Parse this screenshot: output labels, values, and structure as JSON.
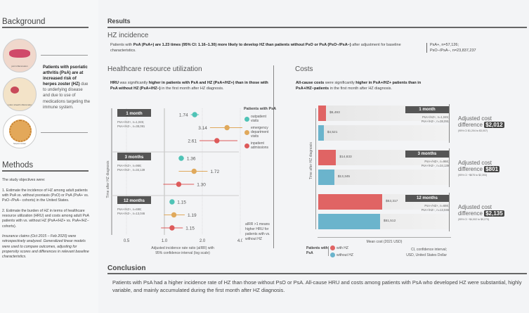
{
  "background": {
    "title": "Background",
    "bold": "Patients with psoriatic arthritis (PsA) are at increased risk of herpes zoster (HZ)",
    "text": " due to underlying disease and due to use of medications targeting the immune system.",
    "img_labels": [
      "joint inflammation",
      "tendon sheath inflammation",
      "herpes zoster"
    ]
  },
  "methods": {
    "title": "Methods",
    "intro": "The study objectives were:",
    "obj1": "1. Estimate the incidence of HZ among adult patients with PsA vs. without psoriasis (PsO) or PsA (PsA+ vs. PsO−/PsA− cohorts) in the United States.",
    "obj2": "2. Estimate the burden of HZ in terms of healthcare resource utilization (HRU) and costs among adult PsA patients with vs. without HZ (PsA+/HZ+ vs. PsA+/HZ− cohorts).",
    "note": "Insurance claims (Oct 2015 – Feb 2020) were retrospectively analyzed. Generalized linear models were used to compare outcomes, adjusting for propensity scores and differences in relevant baseline characteristics."
  },
  "results": {
    "title": "Results",
    "incidence_title": "HZ incidence",
    "inc_a": "Patients with ",
    "inc_b": "PsA (PsA+) are 1.23 times (95% CI: 1.16–1.30) more likely to develop HZ than patients without PsO or PsA (PsO−/PsA−)",
    "inc_c": " after adjustment for baseline characteristics.",
    "n1": "PsA+, n=57,126;",
    "n2": "PsO−/PsA−, n=23,837,237"
  },
  "hru": {
    "title": "Healthcare resource utilization",
    "t1": "HRU",
    "t2": " was significantly ",
    "t3": "higher in patients with PsA and HZ (PsA+/HZ+) than in those with PsA without HZ (PsA+/HZ−)",
    "t4": " in the first month after HZ diagnosis.",
    "ylabel": "Time after HZ diagnosis",
    "xlabel": "Adjusted incidence rate ratio (aIRR) with 95% confidence interval (log scale)",
    "legend_title": "Patients with PsA",
    "note": "aIRR >1 means higher HRU for patients with vs. without HZ"
  },
  "colors": {
    "outpatient": "#4fc3b6",
    "ed": "#e0a95c",
    "inpatient": "#dd5a5a",
    "with_hz": "#e06464",
    "without_hz": "#6bb4cc"
  },
  "chart_data": [
    {
      "type": "forest",
      "xscale": "log",
      "xticks": [
        0.5,
        1.0,
        2.0,
        4.0
      ],
      "tick_labels": [
        "0.5",
        "1.0",
        "2.0",
        "4.0"
      ],
      "series": [
        {
          "name": "outpatient visits"
        },
        {
          "name": "emergency department visits"
        },
        {
          "name": "inpatient admissions"
        }
      ],
      "groups": [
        {
          "label": "1 month",
          "n1": "PsA+/HZ+, n=1,045;",
          "n2": "PsA+/HZ−, n=38,091",
          "points": [
            {
              "v": 1.74,
              "lo": 1.62,
              "hi": 1.88
            },
            {
              "v": 3.14,
              "lo": 2.3,
              "hi": 4.3
            },
            {
              "v": 2.61,
              "lo": 1.9,
              "hi": 3.8
            }
          ]
        },
        {
          "label": "3 months",
          "n1": "PsA+/HZ+, n=966;",
          "n2": "PsA+/HZ−, n=34,139",
          "points": [
            {
              "v": 1.36,
              "lo": 1.3,
              "hi": 1.43
            },
            {
              "v": 1.72,
              "lo": 1.3,
              "hi": 2.2
            },
            {
              "v": 1.3,
              "lo": 0.98,
              "hi": 1.72
            }
          ]
        },
        {
          "label": "12 months",
          "n1": "PsA+/HZ+, n=698;",
          "n2": "PsA+/HZ−, n=13,046",
          "points": [
            {
              "v": 1.15,
              "lo": 1.1,
              "hi": 1.2
            },
            {
              "v": 1.19,
              "lo": 0.99,
              "hi": 1.45
            },
            {
              "v": 1.15,
              "lo": 0.94,
              "hi": 1.4
            }
          ]
        }
      ]
    },
    {
      "type": "bar",
      "orientation": "horizontal",
      "xlabel": "Mean cost (2021 USD)",
      "ylabel": "Time after HZ diagnosis",
      "series": [
        {
          "name": "with HZ"
        },
        {
          "name": "without HZ"
        }
      ],
      "groups": [
        {
          "label": "1 month",
          "n1": "PsA+/HZ+, n=1,045;",
          "n2": "PsA+/HZ−, n=38,091",
          "with": 6493,
          "without": 4521,
          "with_label": "$6,493",
          "without_label": "$4,521",
          "diff": "$2,012",
          "ci": "(95% CI $1,204 to $3,007)"
        },
        {
          "label": "3 months",
          "n1": "PsA+/HZ+, n=966;",
          "n2": "PsA+/HZ−, n=34,139",
          "with": 14833,
          "without": 13345,
          "with_label": "$14,833",
          "without_label": "$13,345",
          "diff": "$801",
          "ci": "(95% CI −$675 to $2,393)"
        },
        {
          "label": "12 months",
          "n1": "PsA+/HZ+, n=698;",
          "n2": "PsA+/HZ−, n=13,046",
          "with": 53317,
          "without": 51512,
          "with_label": "$53,317",
          "without_label": "$51,512",
          "diff": "$2,135",
          "ci": "(95% CI −$4,002 to $9,273)"
        }
      ]
    }
  ],
  "costs": {
    "title": "Costs",
    "t1": "All-cause costs",
    "t2": " were significantly ",
    "t3": "higher in PsA+/HZ+ patients than in PsA+/HZ−patients",
    "t4": " in the first month after HZ diagnosis.",
    "diff_label1": "Adjusted cost",
    "diff_label2": "difference",
    "legend_title": "Patients with PsA",
    "abbr1": "CI, confidence interval;",
    "abbr2": "USD, United States Dollar"
  },
  "conclusion": {
    "title": "Conclusion",
    "text": "Patients with PsA had a higher incidence rate of HZ than those without PsO or PsA. All-cause HRU and costs among patients with PsA who developed HZ were substantial, highly variable, and mainly accumulated during the first month after HZ diagnosis."
  }
}
